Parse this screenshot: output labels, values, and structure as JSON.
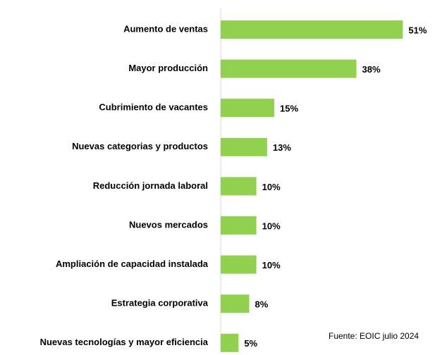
{
  "chart_data": {
    "type": "barh",
    "categories": [
      "Aumento de ventas",
      "Mayor producción",
      "Cubrimiento de vacantes",
      "Nuevas categorias y productos",
      "Reducción jornada laboral",
      "Nuevos mercados",
      "Ampliación de capacidad instalada",
      "Estrategia corporativa",
      "Nuevas tecnologías y mayor eficiencia"
    ],
    "values": [
      51,
      38,
      15,
      13,
      10,
      10,
      10,
      8,
      5
    ],
    "value_labels": [
      "51%",
      "38%",
      "15%",
      "13%",
      "10%",
      "10%",
      "10%",
      "8%",
      "5%"
    ],
    "color": "#92d050",
    "xlim": [
      0,
      60
    ],
    "annotation": "Fuente: EOIC julio 2024"
  }
}
